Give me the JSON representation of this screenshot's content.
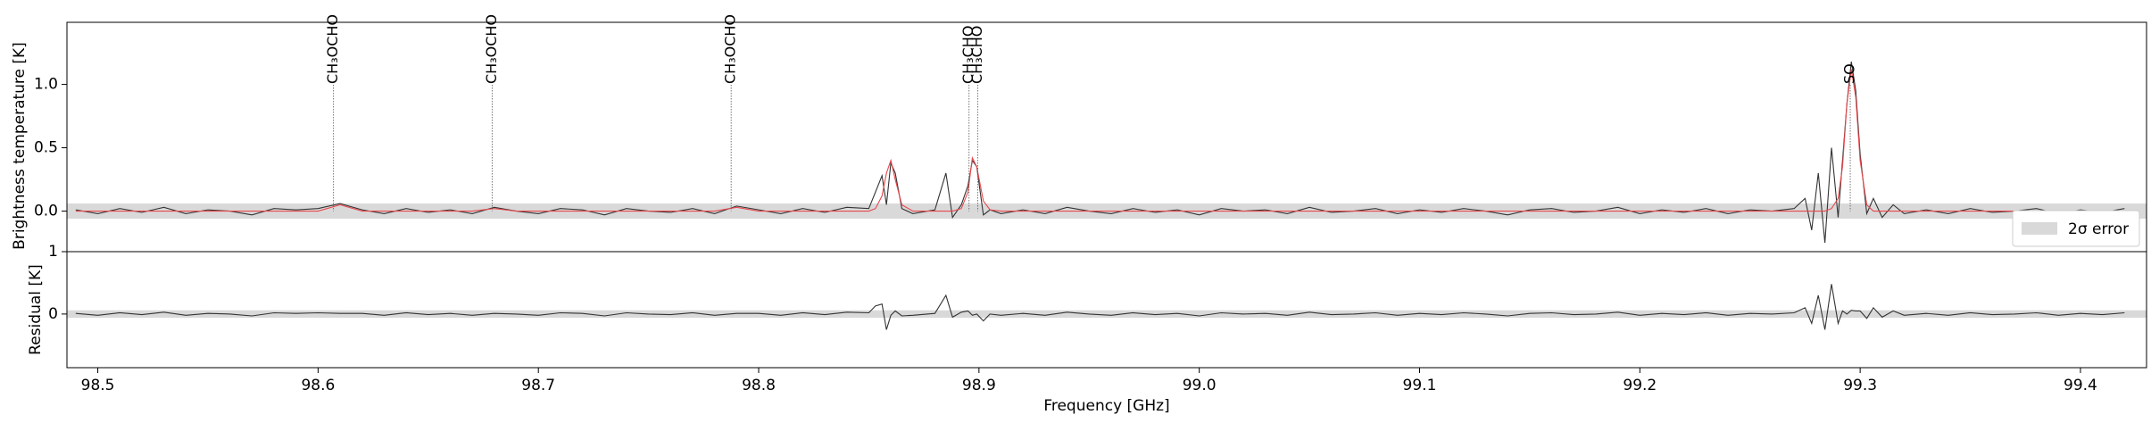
{
  "chart_data": [
    {
      "type": "line",
      "ylabel": "Brightness temperature [K]",
      "x": [
        98.49,
        98.5,
        98.51,
        98.52,
        98.53,
        98.54,
        98.55,
        98.56,
        98.57,
        98.58,
        98.59,
        98.6,
        98.61,
        98.62,
        98.63,
        98.64,
        98.65,
        98.66,
        98.67,
        98.68,
        98.69,
        98.7,
        98.71,
        98.72,
        98.73,
        98.74,
        98.75,
        98.76,
        98.77,
        98.78,
        98.79,
        98.8,
        98.81,
        98.82,
        98.83,
        98.84,
        98.85,
        98.853,
        98.856,
        98.858,
        98.86,
        98.862,
        98.865,
        98.87,
        98.88,
        98.885,
        98.888,
        98.892,
        98.895,
        98.897,
        98.899,
        98.902,
        98.905,
        98.91,
        98.92,
        98.93,
        98.94,
        98.95,
        98.96,
        98.97,
        98.98,
        98.99,
        99.0,
        99.01,
        99.02,
        99.03,
        99.04,
        99.05,
        99.06,
        99.07,
        99.08,
        99.09,
        99.1,
        99.11,
        99.12,
        99.13,
        99.14,
        99.15,
        99.16,
        99.17,
        99.18,
        99.19,
        99.2,
        99.21,
        99.22,
        99.23,
        99.24,
        99.25,
        99.26,
        99.27,
        99.275,
        99.278,
        99.281,
        99.284,
        99.287,
        99.29,
        99.292,
        99.294,
        99.296,
        99.298,
        99.3,
        99.303,
        99.306,
        99.31,
        99.315,
        99.32,
        99.33,
        99.34,
        99.35,
        99.36,
        99.37,
        99.38,
        99.39,
        99.4,
        99.41,
        99.42
      ],
      "series": [
        {
          "color": "#333333",
          "values": [
            0.01,
            -0.02,
            0.02,
            -0.01,
            0.03,
            -0.02,
            0.01,
            0,
            -0.03,
            0.02,
            0.01,
            0.02,
            0.06,
            0.01,
            -0.02,
            0.02,
            -0.01,
            0.01,
            -0.02,
            0.03,
            0,
            -0.02,
            0.02,
            0.01,
            -0.03,
            0.02,
            0,
            -0.01,
            0.02,
            -0.02,
            0.04,
            0.01,
            -0.02,
            0.02,
            -0.01,
            0.03,
            0.02,
            0.15,
            0.28,
            0.05,
            0.38,
            0.3,
            0.02,
            -0.02,
            0.01,
            0.3,
            -0.05,
            0.05,
            0.2,
            0.4,
            0.35,
            -0.03,
            0.01,
            -0.02,
            0.01,
            -0.02,
            0.03,
            0,
            -0.02,
            0.02,
            -0.01,
            0.01,
            -0.03,
            0.02,
            0,
            0.01,
            -0.02,
            0.03,
            -0.01,
            0,
            0.02,
            -0.02,
            0.01,
            -0.01,
            0.02,
            0,
            -0.03,
            0.01,
            0.02,
            -0.01,
            0,
            0.03,
            -0.02,
            0.01,
            -0.01,
            0.02,
            -0.02,
            0.01,
            0,
            0.02,
            0.1,
            -0.15,
            0.3,
            -0.25,
            0.5,
            -0.05,
            0.4,
            0.85,
            1.18,
            0.95,
            0.45,
            -0.02,
            0.1,
            -0.05,
            0.05,
            -0.02,
            0.01,
            -0.02,
            0.02,
            -0.01,
            0,
            0.02,
            -0.02,
            0.01,
            -0.01,
            0.02
          ]
        },
        {
          "color": "#e8474b",
          "values": [
            0,
            0,
            0,
            0,
            0,
            0,
            0,
            0,
            0,
            0,
            0,
            0,
            0.05,
            0,
            0,
            0,
            0,
            0,
            0,
            0.02,
            0,
            0,
            0,
            0,
            0,
            0,
            0,
            0,
            0,
            0,
            0.03,
            0,
            0,
            0,
            0,
            0,
            0,
            0.02,
            0.12,
            0.3,
            0.4,
            0.25,
            0.05,
            0,
            0,
            0,
            0,
            0.02,
            0.15,
            0.42,
            0.35,
            0.08,
            0.01,
            0,
            0,
            0,
            0,
            0,
            0,
            0,
            0,
            0,
            0,
            0,
            0,
            0,
            0,
            0,
            0,
            0,
            0,
            0,
            0,
            0,
            0,
            0,
            0,
            0,
            0,
            0,
            0,
            0,
            0,
            0,
            0,
            0,
            0,
            0,
            0,
            0,
            0,
            0,
            0,
            0,
            0.02,
            0.1,
            0.35,
            0.85,
            1.12,
            0.9,
            0.4,
            0.05,
            0,
            0,
            0,
            0,
            0,
            0,
            0,
            0,
            0,
            0,
            0,
            0,
            0,
            0
          ]
        }
      ],
      "error_band": [
        -0.06,
        0.06
      ],
      "legend": "2σ error",
      "legend_position": "lower right",
      "annotations": [
        {
          "label": "CH₃OCHO",
          "x": 98.607
        },
        {
          "label": "CH₃OCHO",
          "x": 98.679
        },
        {
          "label": "CH₃OCHO",
          "x": 98.7875
        },
        {
          "label": "CH₃CHO",
          "x": 98.8955
        },
        {
          "label": "CH₃CHO",
          "x": 98.8995
        },
        {
          "label": "SO",
          "x": 99.2955
        }
      ],
      "xlim": [
        98.486,
        99.43
      ],
      "ylim": [
        -0.32,
        1.49
      ],
      "yticks": [
        {
          "value": 0,
          "label": "0.0"
        },
        0.5,
        {
          "value": 1,
          "label": "1.0"
        }
      ]
    },
    {
      "type": "line",
      "ylabel": "Residual [K]",
      "xlabel": "Frequency [GHz]",
      "x": [
        98.49,
        98.5,
        98.51,
        98.52,
        98.53,
        98.54,
        98.55,
        98.56,
        98.57,
        98.58,
        98.59,
        98.6,
        98.61,
        98.62,
        98.63,
        98.64,
        98.65,
        98.66,
        98.67,
        98.68,
        98.69,
        98.7,
        98.71,
        98.72,
        98.73,
        98.74,
        98.75,
        98.76,
        98.77,
        98.78,
        98.79,
        98.8,
        98.81,
        98.82,
        98.83,
        98.84,
        98.85,
        98.853,
        98.856,
        98.858,
        98.86,
        98.862,
        98.865,
        98.87,
        98.88,
        98.885,
        98.888,
        98.892,
        98.895,
        98.897,
        98.899,
        98.902,
        98.905,
        98.91,
        98.92,
        98.93,
        98.94,
        98.95,
        98.96,
        98.97,
        98.98,
        98.99,
        99.0,
        99.01,
        99.02,
        99.03,
        99.04,
        99.05,
        99.06,
        99.07,
        99.08,
        99.09,
        99.1,
        99.11,
        99.12,
        99.13,
        99.14,
        99.15,
        99.16,
        99.17,
        99.18,
        99.19,
        99.2,
        99.21,
        99.22,
        99.23,
        99.24,
        99.25,
        99.26,
        99.27,
        99.275,
        99.278,
        99.281,
        99.284,
        99.287,
        99.29,
        99.292,
        99.294,
        99.296,
        99.298,
        99.3,
        99.303,
        99.306,
        99.31,
        99.315,
        99.32,
        99.33,
        99.34,
        99.35,
        99.36,
        99.37,
        99.38,
        99.39,
        99.4,
        99.41,
        99.42
      ],
      "series": [
        {
          "color": "#333333",
          "values": [
            0.01,
            -0.02,
            0.02,
            -0.01,
            0.03,
            -0.02,
            0.01,
            0,
            -0.03,
            0.02,
            0.01,
            0.02,
            0.01,
            0.01,
            -0.02,
            0.02,
            -0.01,
            0.01,
            -0.02,
            0.01,
            0,
            -0.02,
            0.02,
            0.01,
            -0.03,
            0.02,
            0,
            -0.01,
            0.02,
            -0.02,
            0.01,
            0.01,
            -0.02,
            0.02,
            -0.01,
            0.03,
            0.02,
            0.13,
            0.16,
            -0.25,
            -0.02,
            0.05,
            -0.03,
            -0.02,
            0.01,
            0.3,
            -0.05,
            0.03,
            0.05,
            -0.02,
            0,
            -0.11,
            0,
            -0.02,
            0.01,
            -0.02,
            0.03,
            0,
            -0.02,
            0.02,
            -0.01,
            0.01,
            -0.03,
            0.02,
            0,
            0.01,
            -0.02,
            0.03,
            -0.01,
            0,
            0.02,
            -0.02,
            0.01,
            -0.01,
            0.02,
            0,
            -0.03,
            0.01,
            0.02,
            -0.01,
            0,
            0.03,
            -0.02,
            0.01,
            -0.01,
            0.02,
            -0.02,
            0.01,
            0,
            0.02,
            0.1,
            -0.15,
            0.3,
            -0.25,
            0.48,
            -0.15,
            0.05,
            0,
            0.06,
            0.05,
            0.05,
            -0.07,
            0.1,
            -0.05,
            0.05,
            -0.02,
            0.01,
            -0.02,
            0.02,
            -0.01,
            0,
            0.02,
            -0.02,
            0.01,
            -0.01,
            0.02
          ]
        }
      ],
      "error_band": [
        -0.06,
        0.06
      ],
      "xlim": [
        98.486,
        99.43
      ],
      "ylim": [
        -0.86,
        1
      ],
      "yticks": [
        0,
        1
      ],
      "xticks": [
        98.5,
        98.6,
        98.7,
        98.8,
        98.9,
        {
          "value": 99,
          "label": "99.0"
        },
        99.1,
        99.2,
        99.3,
        99.4
      ]
    }
  ]
}
